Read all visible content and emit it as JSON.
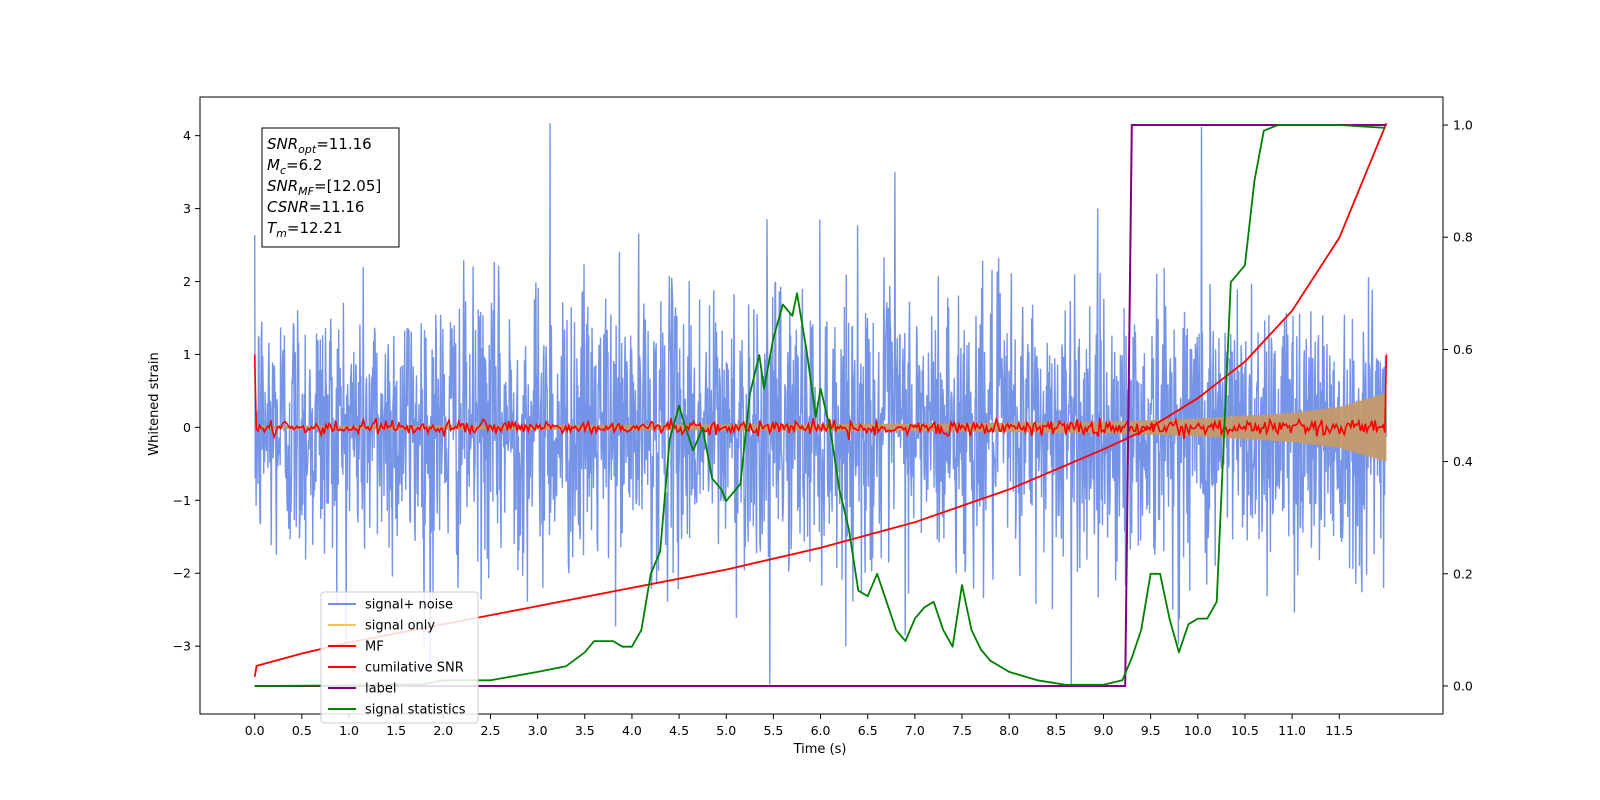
{
  "chart_data": {
    "type": "line",
    "xlabel": "Time (s)",
    "ylabel": "Whitened strain",
    "xlim": [
      -0.58,
      12.6
    ],
    "ylim": [
      -3.93,
      4.53
    ],
    "y2lim": [
      -0.05,
      1.05
    ],
    "xticks": [
      0.0,
      0.5,
      1.0,
      1.5,
      2.0,
      2.5,
      3.0,
      3.5,
      4.0,
      4.5,
      5.0,
      5.5,
      6.0,
      6.5,
      7.0,
      7.5,
      8.0,
      8.5,
      9.0,
      9.5,
      10.0,
      10.5,
      11.0,
      11.5
    ],
    "xtick_labels": [
      "0.0",
      "0.5",
      "1.0",
      "1.5",
      "2.0",
      "2.5",
      "3.0",
      "3.5",
      "4.0",
      "4.5",
      "5.0",
      "5.5",
      "6.0",
      "6.5",
      "7.0",
      "7.5",
      "8.0",
      "8.5",
      "9.0",
      "9.5",
      "10.0",
      "10.5",
      "11.0",
      "11.5"
    ],
    "yticks": [
      -3,
      -2,
      -1,
      0,
      1,
      2,
      3,
      4
    ],
    "ytick_labels": [
      "−3",
      "−2",
      "−1",
      "0",
      "1",
      "2",
      "3",
      "4"
    ],
    "y2ticks": [
      0.0,
      0.2,
      0.4,
      0.6,
      0.8,
      1.0
    ],
    "y2tick_labels": [
      "0.0",
      "0.2",
      "0.4",
      "0.6",
      "0.8",
      "1.0"
    ],
    "grid": false,
    "legend_position": "lower-left",
    "annotation": {
      "lines": [
        {
          "base": "SNR",
          "sub": "opt",
          "value": "=11.16"
        },
        {
          "base": "M",
          "sub": "c",
          "value": "=6.2"
        },
        {
          "base": "SNR",
          "sub": "MF",
          "value": "=[12.05]"
        },
        {
          "base": "CSNR",
          "sub": "",
          "value": "=11.16"
        },
        {
          "base": "T",
          "sub": "m",
          "value": "=12.21"
        }
      ]
    },
    "series": [
      {
        "name": "signal+ noise",
        "axis": "left",
        "kind": "noise",
        "color": "#6f8ee6",
        "x_range": [
          0.0,
          12.0
        ],
        "std": 0.95,
        "notable_points": [
          [
            3.13,
            4.17
          ],
          [
            1.86,
            -3.35
          ],
          [
            5.46,
            -3.53
          ],
          [
            8.66,
            -3.53
          ],
          [
            10.04,
            4.12
          ],
          [
            6.79,
            3.5
          ]
        ]
      },
      {
        "name": "signal only",
        "axis": "left",
        "kind": "envelope",
        "color": "#c49a6c",
        "x": [
          0.0,
          7.0,
          9.0,
          10.0,
          11.0,
          11.5,
          12.0
        ],
        "amplitude": [
          0.02,
          0.05,
          0.08,
          0.12,
          0.2,
          0.28,
          0.47
        ]
      },
      {
        "name": "MF",
        "axis": "left",
        "kind": "noise",
        "color": "#ff0000",
        "x_range": [
          0.0,
          12.0
        ],
        "std": 0.05,
        "endpoints": [
          1.0,
          1.0
        ]
      },
      {
        "name": "cumilative SNR",
        "axis": "left",
        "kind": "line",
        "color": "#ff0000",
        "x": [
          0.0,
          0.02,
          0.5,
          1.0,
          2.0,
          3.0,
          4.0,
          5.0,
          6.0,
          7.0,
          8.0,
          9.0,
          9.5,
          10.0,
          10.5,
          11.0,
          11.5,
          12.0
        ],
        "y": [
          -3.42,
          -3.27,
          -3.1,
          -2.95,
          -2.7,
          -2.45,
          -2.2,
          -1.95,
          -1.65,
          -1.3,
          -0.85,
          -0.3,
          0.0,
          0.4,
          0.9,
          1.6,
          2.6,
          4.17
        ]
      },
      {
        "name": "label",
        "axis": "right",
        "kind": "line",
        "color": "#800080",
        "x": [
          0.0,
          9.23,
          9.3,
          11.99
        ],
        "y": [
          0.0,
          0.0,
          1.0,
          1.0
        ]
      },
      {
        "name": "signal statistics",
        "axis": "right",
        "kind": "line",
        "color": "#008000",
        "x": [
          0.0,
          1.0,
          1.8,
          2.0,
          2.5,
          3.0,
          3.3,
          3.5,
          3.6,
          3.8,
          3.9,
          4.0,
          4.1,
          4.2,
          4.3,
          4.4,
          4.5,
          4.55,
          4.65,
          4.75,
          4.85,
          4.95,
          5.0,
          5.05,
          5.15,
          5.25,
          5.35,
          5.4,
          5.5,
          5.6,
          5.7,
          5.75,
          5.85,
          5.95,
          6.0,
          6.1,
          6.2,
          6.3,
          6.4,
          6.5,
          6.6,
          6.7,
          6.8,
          6.9,
          7.0,
          7.1,
          7.2,
          7.3,
          7.4,
          7.5,
          7.6,
          7.7,
          7.8,
          8.0,
          8.3,
          8.6,
          9.0,
          9.2,
          9.3,
          9.4,
          9.5,
          9.6,
          9.7,
          9.8,
          9.9,
          10.0,
          10.1,
          10.2,
          10.35,
          10.5,
          10.6,
          10.7,
          10.85,
          11.0,
          11.5,
          11.99
        ],
        "y": [
          0.0,
          0.001,
          0.003,
          0.01,
          0.01,
          0.025,
          0.035,
          0.06,
          0.08,
          0.08,
          0.07,
          0.07,
          0.1,
          0.2,
          0.24,
          0.44,
          0.5,
          0.47,
          0.42,
          0.46,
          0.37,
          0.35,
          0.33,
          0.34,
          0.36,
          0.52,
          0.59,
          0.53,
          0.62,
          0.68,
          0.66,
          0.7,
          0.6,
          0.48,
          0.53,
          0.46,
          0.35,
          0.28,
          0.17,
          0.16,
          0.2,
          0.15,
          0.1,
          0.08,
          0.12,
          0.14,
          0.15,
          0.1,
          0.07,
          0.18,
          0.1,
          0.065,
          0.045,
          0.025,
          0.01,
          0.002,
          0.002,
          0.01,
          0.05,
          0.1,
          0.2,
          0.2,
          0.12,
          0.06,
          0.11,
          0.12,
          0.12,
          0.15,
          0.72,
          0.75,
          0.9,
          0.99,
          1.0,
          1.0,
          1.0,
          0.995
        ]
      }
    ]
  }
}
